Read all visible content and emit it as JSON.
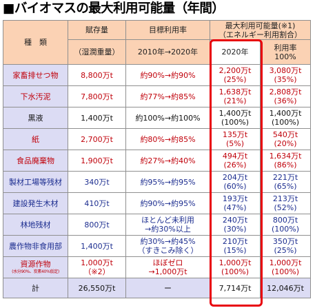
{
  "title": "■バイオマスの最大利用可能量（年間）",
  "header": {
    "type_label": "種　類",
    "stock_line1": "賦存量",
    "stock_line2": "（湿潤重量）",
    "target_line1": "目標利用率",
    "target_line2": "2010年→2020年",
    "max_line1": "最大利用可能量(※1)",
    "max_line2": "（エネルギー利用割合）",
    "col_2020": "2020年",
    "rate_line1": "利用率",
    "rate_line2": "100%"
  },
  "rows": [
    {
      "name": "家畜排せつ物",
      "stock": "8,800万t",
      "target": "約90%→約90%",
      "v2020_amount": "2,200万t",
      "v2020_pct": "(25%)",
      "v100_amount": "3,080万t",
      "v100_pct": "(35%)"
    },
    {
      "name": "下水汚泥",
      "stock": "7,800万t",
      "target": "約77%→約85%",
      "v2020_amount": "1,638万t",
      "v2020_pct": "(21%)",
      "v100_amount": "2,808万t",
      "v100_pct": "(36%)"
    },
    {
      "name": "黒液",
      "stock": "1,400万t",
      "target": "約100%→約100%",
      "v2020_amount": "1,400万t",
      "v2020_pct": "(100%)",
      "v100_amount": "1,400万t",
      "v100_pct": "(100%)"
    },
    {
      "name": "紙",
      "stock": "2,700万t",
      "target": "約80%→約85%",
      "v2020_amount": "135万t",
      "v2020_pct": "(5%)",
      "v100_amount": "540万t",
      "v100_pct": "(20%)"
    },
    {
      "name": "食品廃棄物",
      "stock": "1,900万t",
      "target": "約27%→約40%",
      "v2020_amount": "494万t",
      "v2020_pct": "(26%)",
      "v100_amount": "1,634万t",
      "v100_pct": "(86%)"
    },
    {
      "name": "製材工場等残材",
      "stock": "340万t",
      "target": "約95%→約95%",
      "v2020_amount": "204万t",
      "v2020_pct": "(60%)",
      "v100_amount": "221万t",
      "v100_pct": "(65%)"
    },
    {
      "name": "建設発生木材",
      "stock": "410万t",
      "target": "約90%→約95%",
      "v2020_amount": "193万t",
      "v2020_pct": "(47%)",
      "v100_amount": "213万t",
      "v100_pct": "(52%)"
    },
    {
      "name": "林地残材",
      "stock": "800万t",
      "target_line1": "ほとんど未利用",
      "target_line2": "→約30%以上",
      "v2020_amount": "240万t",
      "v2020_pct": "(30%)",
      "v100_amount": "800万t",
      "v100_pct": "(100%)"
    },
    {
      "name": "農作物非食用部",
      "stock": "1,400万t",
      "target_line1": "約30%→約45%",
      "target_line2": "（すきこみ除く）",
      "v2020_amount": "210万t",
      "v2020_pct": "(15%)",
      "v100_amount": "350万t",
      "v100_pct": "(25%)"
    },
    {
      "name": "資源作物",
      "name_note": "(水分90%、炭素40%仮定)",
      "stock_line1": "1,000万t",
      "stock_line2": "（※2）",
      "target_line1": "ほぼゼロ",
      "target_line2": "→1,000万t",
      "v2020_amount": "1,000万t",
      "v2020_pct": "(100%)",
      "v100_amount": "1,000万t",
      "v100_pct": "(100%)"
    }
  ],
  "total": {
    "label": "計",
    "stock": "26,550万t",
    "target": "ー",
    "v2020": "7,714万t",
    "v100": "12,046万t"
  },
  "colors": {
    "highlight": "#e8000b",
    "header_bg": "#fbd2b4",
    "name_bg": "#dcdcf4",
    "red_text": "#c0000a",
    "blue_text": "#1b2c8f"
  }
}
